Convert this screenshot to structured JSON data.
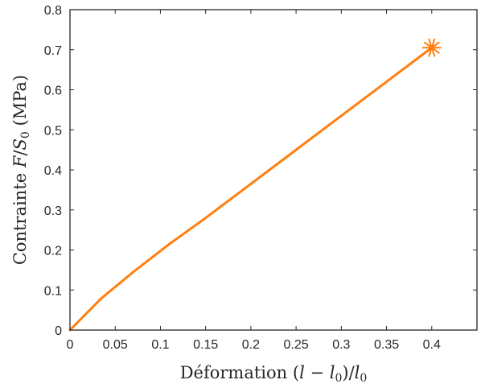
{
  "chart_data": {
    "type": "line",
    "title": "",
    "xlabel": {
      "prefix": "Déformation ",
      "math_open": "(",
      "math_l": "l",
      "math_minus": " − ",
      "math_l0": "l",
      "math_sub0": "0",
      "math_close": ")/",
      "math_l0b": "l",
      "math_sub0b": "0"
    },
    "ylabel": {
      "prefix": "Contrainte ",
      "math_F": "F",
      "math_slash": "/",
      "math_S": "S",
      "math_sub0": "0",
      "suffix": " (MPa)"
    },
    "xlim": [
      0,
      0.45
    ],
    "ylim": [
      0,
      0.8
    ],
    "xticks": [
      0,
      0.05,
      0.1,
      0.15,
      0.2,
      0.25,
      0.3,
      0.35,
      0.4
    ],
    "xtick_labels": [
      "0",
      "0.05",
      "0.1",
      "0.15",
      "0.2",
      "0.25",
      "0.3",
      "0.35",
      "0.4"
    ],
    "yticks": [
      0,
      0.1,
      0.2,
      0.3,
      0.4,
      0.5,
      0.6,
      0.7,
      0.8
    ],
    "ytick_labels": [
      "0",
      "0.1",
      "0.2",
      "0.3",
      "0.4",
      "0.5",
      "0.6",
      "0.7",
      "0.8"
    ],
    "grid": false,
    "legend": "none",
    "series": [
      {
        "color": "#ff7f0e",
        "x": [
          0,
          0.035,
          0.07,
          0.11,
          0.15,
          0.2,
          0.25,
          0.3,
          0.35,
          0.4
        ],
        "y": [
          0,
          0.08,
          0.145,
          0.215,
          0.28,
          0.365,
          0.45,
          0.535,
          0.62,
          0.705
        ]
      }
    ],
    "marker": {
      "symbol": "star",
      "color": "#ff7f0e",
      "x": 0.4,
      "y": 0.705
    }
  }
}
